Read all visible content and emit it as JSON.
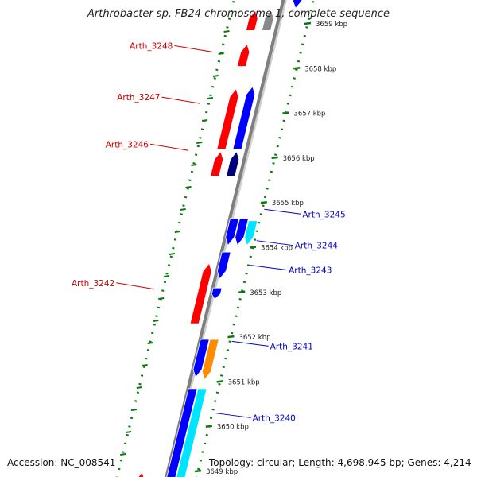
{
  "title": "Arthrobacter sp. FB24 chromosome 1, complete sequence",
  "accession": "Accession: NC_008541",
  "topology": "Topology: circular; Length: 4,698,945 bp; Genes: 4,214",
  "colors": {
    "forward": "#ff0000",
    "reverse": "#0000ff",
    "reverse_dark": "#00007a",
    "cyan": "#00e5ff",
    "orange": "#ff8c00",
    "grey": "#888888",
    "backbone": "#7f7f7f",
    "dots": "#0a7a0a"
  },
  "kbp_labels": [
    {
      "kbp": 3659,
      "label": "3659 kbp"
    },
    {
      "kbp": 3658,
      "label": "3658 kbp"
    },
    {
      "kbp": 3657,
      "label": "3657 kbp"
    },
    {
      "kbp": 3656,
      "label": "3656 kbp"
    },
    {
      "kbp": 3655,
      "label": "3655 kbp"
    },
    {
      "kbp": 3654,
      "label": "3654 kbp"
    },
    {
      "kbp": 3653,
      "label": "3653 kbp"
    },
    {
      "kbp": 3652,
      "label": "3652 kbp"
    },
    {
      "kbp": 3651,
      "label": "3651 kbp"
    },
    {
      "kbp": 3650,
      "label": "3650 kbp"
    },
    {
      "kbp": 3649,
      "label": "3649 kbp"
    }
  ],
  "genes": [
    {
      "name": "",
      "strand": "forward",
      "ring": 2,
      "start": 3659.3,
      "end": 3658.85,
      "color": "forward"
    },
    {
      "name": "",
      "strand": "forward",
      "ring": 1,
      "start": 3659.3,
      "end": 3658.85,
      "color": "grey"
    },
    {
      "name": "",
      "strand": "forward",
      "ring": 2,
      "start": 3658.55,
      "end": 3658.05,
      "color": "forward"
    },
    {
      "name": "",
      "strand": "forward",
      "ring": 2,
      "start": 3657.55,
      "end": 3656.2,
      "color": "forward"
    },
    {
      "name": "",
      "strand": "forward",
      "ring": 1,
      "start": 3657.6,
      "end": 3656.2,
      "color": "reverse"
    },
    {
      "name": "",
      "strand": "forward",
      "ring": 2,
      "start": 3656.15,
      "end": 3655.6,
      "color": "forward"
    },
    {
      "name": "",
      "strand": "forward",
      "ring": 1,
      "start": 3656.15,
      "end": 3655.6,
      "color": "reverse_dark"
    },
    {
      "name": "",
      "strand": "forward",
      "ring": 1,
      "start": 3653.65,
      "end": 3652.3,
      "color": "forward"
    },
    {
      "name": "",
      "strand": "reverse",
      "ring": 1,
      "start": 3654.65,
      "end": 3654.05,
      "color": "reverse"
    },
    {
      "name": "",
      "strand": "reverse",
      "ring": 2,
      "start": 3654.65,
      "end": 3654.05,
      "color": "reverse"
    },
    {
      "name": "",
      "strand": "reverse",
      "ring": 3,
      "start": 3654.6,
      "end": 3654.05,
      "color": "cyan"
    },
    {
      "name": "",
      "strand": "reverse",
      "ring": 1,
      "start": 3653.9,
      "end": 3653.3,
      "color": "reverse"
    },
    {
      "name": "",
      "strand": "reverse",
      "ring": 1,
      "start": 3653.1,
      "end": 3652.85,
      "color": "reverse"
    },
    {
      "name": "",
      "strand": "reverse",
      "ring": 1,
      "start": 3651.95,
      "end": 3651.1,
      "color": "reverse"
    },
    {
      "name": "",
      "strand": "reverse",
      "ring": 2,
      "start": 3651.95,
      "end": 3651.05,
      "color": "orange"
    },
    {
      "name": "",
      "strand": "reverse",
      "ring": 1,
      "start": 3650.85,
      "end": 3648.6,
      "color": "reverse"
    },
    {
      "name": "",
      "strand": "reverse",
      "ring": 2,
      "start": 3650.85,
      "end": 3648.6,
      "color": "cyan"
    },
    {
      "name": "",
      "strand": "forward",
      "ring": 2,
      "start": 3648.98,
      "end": 3648.6,
      "color": "forward"
    },
    {
      "name": "",
      "strand": "reverse",
      "ring": 2,
      "start": 3659.7,
      "end": 3659.35,
      "color": "reverse"
    }
  ],
  "gene_labels": [
    {
      "text": "Arth_3248",
      "strand": "forward",
      "kbp": 3658.3,
      "color": "#cc0000"
    },
    {
      "text": "Arth_3247",
      "strand": "forward",
      "kbp": 3657.15,
      "color": "#cc0000"
    },
    {
      "text": "Arth_3246",
      "strand": "forward",
      "kbp": 3656.1,
      "color": "#cc0000"
    },
    {
      "text": "Arth_3242",
      "strand": "forward",
      "kbp": 3653.0,
      "color": "#cc0000"
    },
    {
      "text": "Arth_3245",
      "strand": "reverse",
      "kbp": 3654.75,
      "color": "#0000cc"
    },
    {
      "text": "Arth_3244",
      "strand": "reverse",
      "kbp": 3654.05,
      "color": "#0000cc"
    },
    {
      "text": "Arth_3243",
      "strand": "reverse",
      "kbp": 3653.5,
      "color": "#0000cc"
    },
    {
      "text": "Arth_3241",
      "strand": "reverse",
      "kbp": 3651.8,
      "color": "#0000cc"
    },
    {
      "text": "Arth_3240",
      "strand": "reverse",
      "kbp": 3650.2,
      "color": "#0000cc"
    }
  ]
}
